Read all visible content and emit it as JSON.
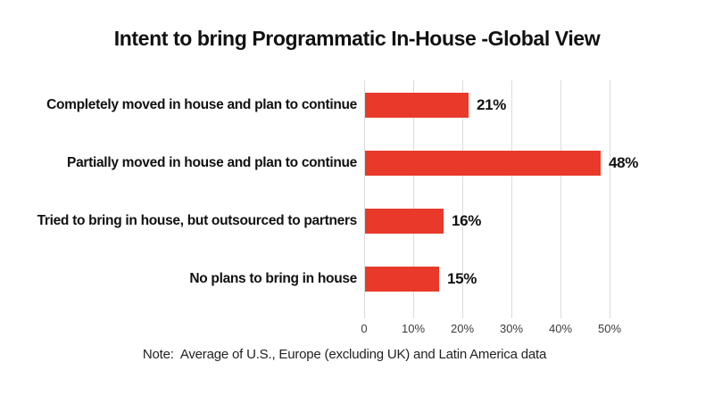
{
  "chart_data": {
    "type": "bar",
    "orientation": "horizontal",
    "title": "Intent to bring Programmatic In-House -Global View",
    "categories": [
      "Completely moved in house and plan to continue",
      "Partially moved in house and plan to continue",
      "Tried to bring in house, but outsourced to partners",
      "No plans to bring in house"
    ],
    "values": [
      21,
      48,
      16,
      15
    ],
    "value_labels": [
      "21%",
      "48%",
      "16%",
      "15%"
    ],
    "x_ticks": [
      "0",
      "10%",
      "20%",
      "30%",
      "40%",
      "50%"
    ],
    "xlim": [
      0,
      50
    ],
    "grid": "vertical",
    "legend": "none",
    "bar_color": "#e8392b",
    "gridline_color": "#dbdbdb",
    "note": "Note:  Average of U.S., Europe (excluding UK) and Latin America data"
  }
}
